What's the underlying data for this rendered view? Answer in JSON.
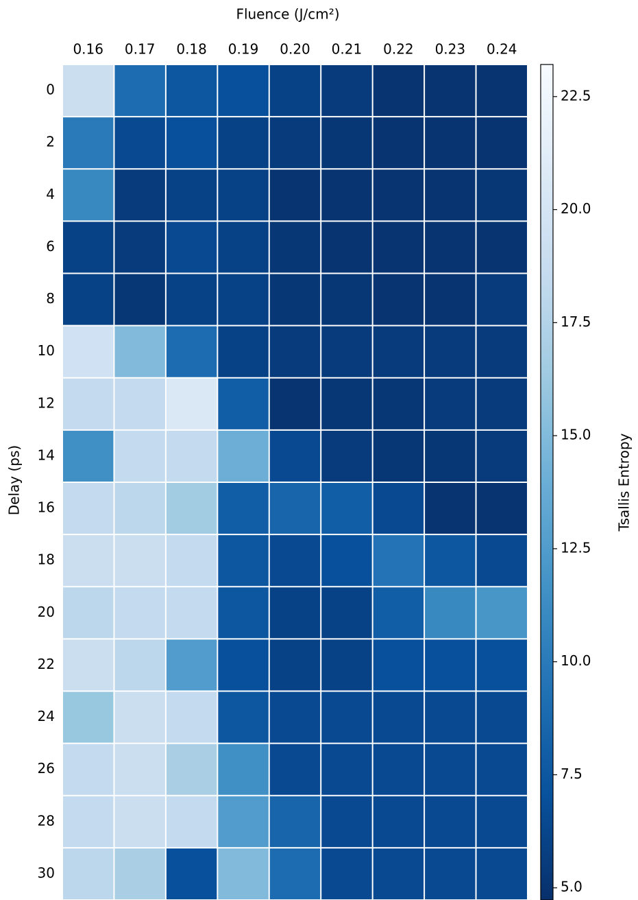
{
  "chart_data": {
    "type": "heatmap",
    "x_label": "Fluence (J/cm²)",
    "y_label": "Delay (ps)",
    "colorbar_label": "Tsallis Entropy",
    "x_categories": [
      "0.16",
      "0.17",
      "0.18",
      "0.19",
      "0.20",
      "0.21",
      "0.22",
      "0.23",
      "0.24"
    ],
    "y_categories": [
      "0",
      "2",
      "4",
      "6",
      "8",
      "10",
      "12",
      "14",
      "16",
      "18",
      "20",
      "22",
      "24",
      "26",
      "28",
      "30"
    ],
    "values": [
      [
        19,
        9,
        7.5,
        7,
        6,
        5.5,
        5,
        5,
        5
      ],
      [
        10,
        6.5,
        7,
        6,
        5.5,
        5.2,
        5,
        5,
        5
      ],
      [
        11,
        5.5,
        6,
        6,
        5,
        5,
        5,
        5,
        5.2
      ],
      [
        6,
        5.5,
        6.5,
        6,
        5.2,
        5,
        5,
        5,
        5
      ],
      [
        6,
        5.2,
        6,
        6,
        5.2,
        5.2,
        5,
        5,
        5.5
      ],
      [
        19.5,
        15,
        9,
        6,
        5.5,
        5.5,
        5.5,
        5.5,
        5.5
      ],
      [
        18.5,
        18.5,
        20.5,
        8,
        5,
        5.2,
        5.2,
        5.5,
        5.5
      ],
      [
        11.5,
        18.5,
        18.5,
        14,
        6.5,
        5.5,
        5.2,
        5.2,
        5.5
      ],
      [
        18.5,
        18,
        16.5,
        8,
        8.5,
        8,
        6.5,
        5,
        5
      ],
      [
        19,
        19,
        18.5,
        7.5,
        6.5,
        7,
        9.5,
        7.5,
        6.5
      ],
      [
        18,
        18.5,
        18.5,
        7.5,
        6,
        6,
        8,
        11,
        12
      ],
      [
        19,
        18,
        12.5,
        7,
        6,
        6,
        7,
        7,
        7
      ],
      [
        16,
        19,
        18.5,
        7.5,
        6.5,
        6.5,
        6.5,
        6.5,
        6.5
      ],
      [
        18.5,
        19,
        17,
        11.5,
        6.5,
        6.5,
        6.5,
        6.5,
        6.5
      ],
      [
        18.5,
        19,
        18.5,
        12.5,
        8.5,
        6.5,
        6.5,
        6.5,
        6.5
      ],
      [
        18,
        17,
        7,
        15,
        9,
        6.5,
        6.5,
        6.5,
        6.5
      ]
    ],
    "clim": [
      4.73,
      23.21
    ],
    "cticks": [
      {
        "value": 5,
        "label": "5.0"
      },
      7.5,
      {
        "value": 10,
        "label": "10.0"
      },
      12.5,
      {
        "value": 15,
        "label": "15.0"
      },
      17.5,
      {
        "value": 20,
        "label": "20.0"
      },
      22.5
    ],
    "colormap": [
      "#08306b",
      "#08519c",
      "#2171b5",
      "#4292c6",
      "#6baed6",
      "#9ecae1",
      "#c6dbef",
      "#deebf7",
      "#f7fbff"
    ]
  }
}
